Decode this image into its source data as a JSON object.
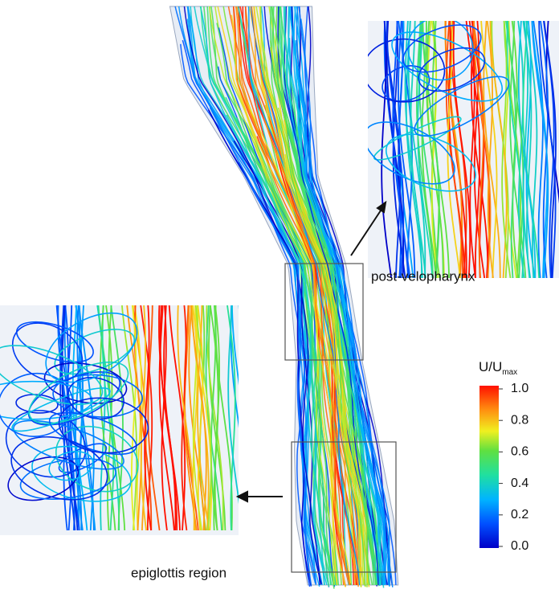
{
  "labels": {
    "upper": "post-velopharynx",
    "lower": "epiglottis region"
  },
  "colorbar": {
    "title": "U/U",
    "title_sub": "max",
    "range": [
      0,
      1
    ],
    "ticks": [
      {
        "value": 1,
        "label": "1.0"
      },
      {
        "value": 0.8,
        "label": "0.8"
      },
      {
        "value": 0.6,
        "label": "0.6"
      },
      {
        "value": 0.4,
        "label": "0.4"
      },
      {
        "value": 0.2,
        "label": "0.2"
      },
      {
        "value": 0,
        "label": "0.0"
      }
    ]
  }
}
